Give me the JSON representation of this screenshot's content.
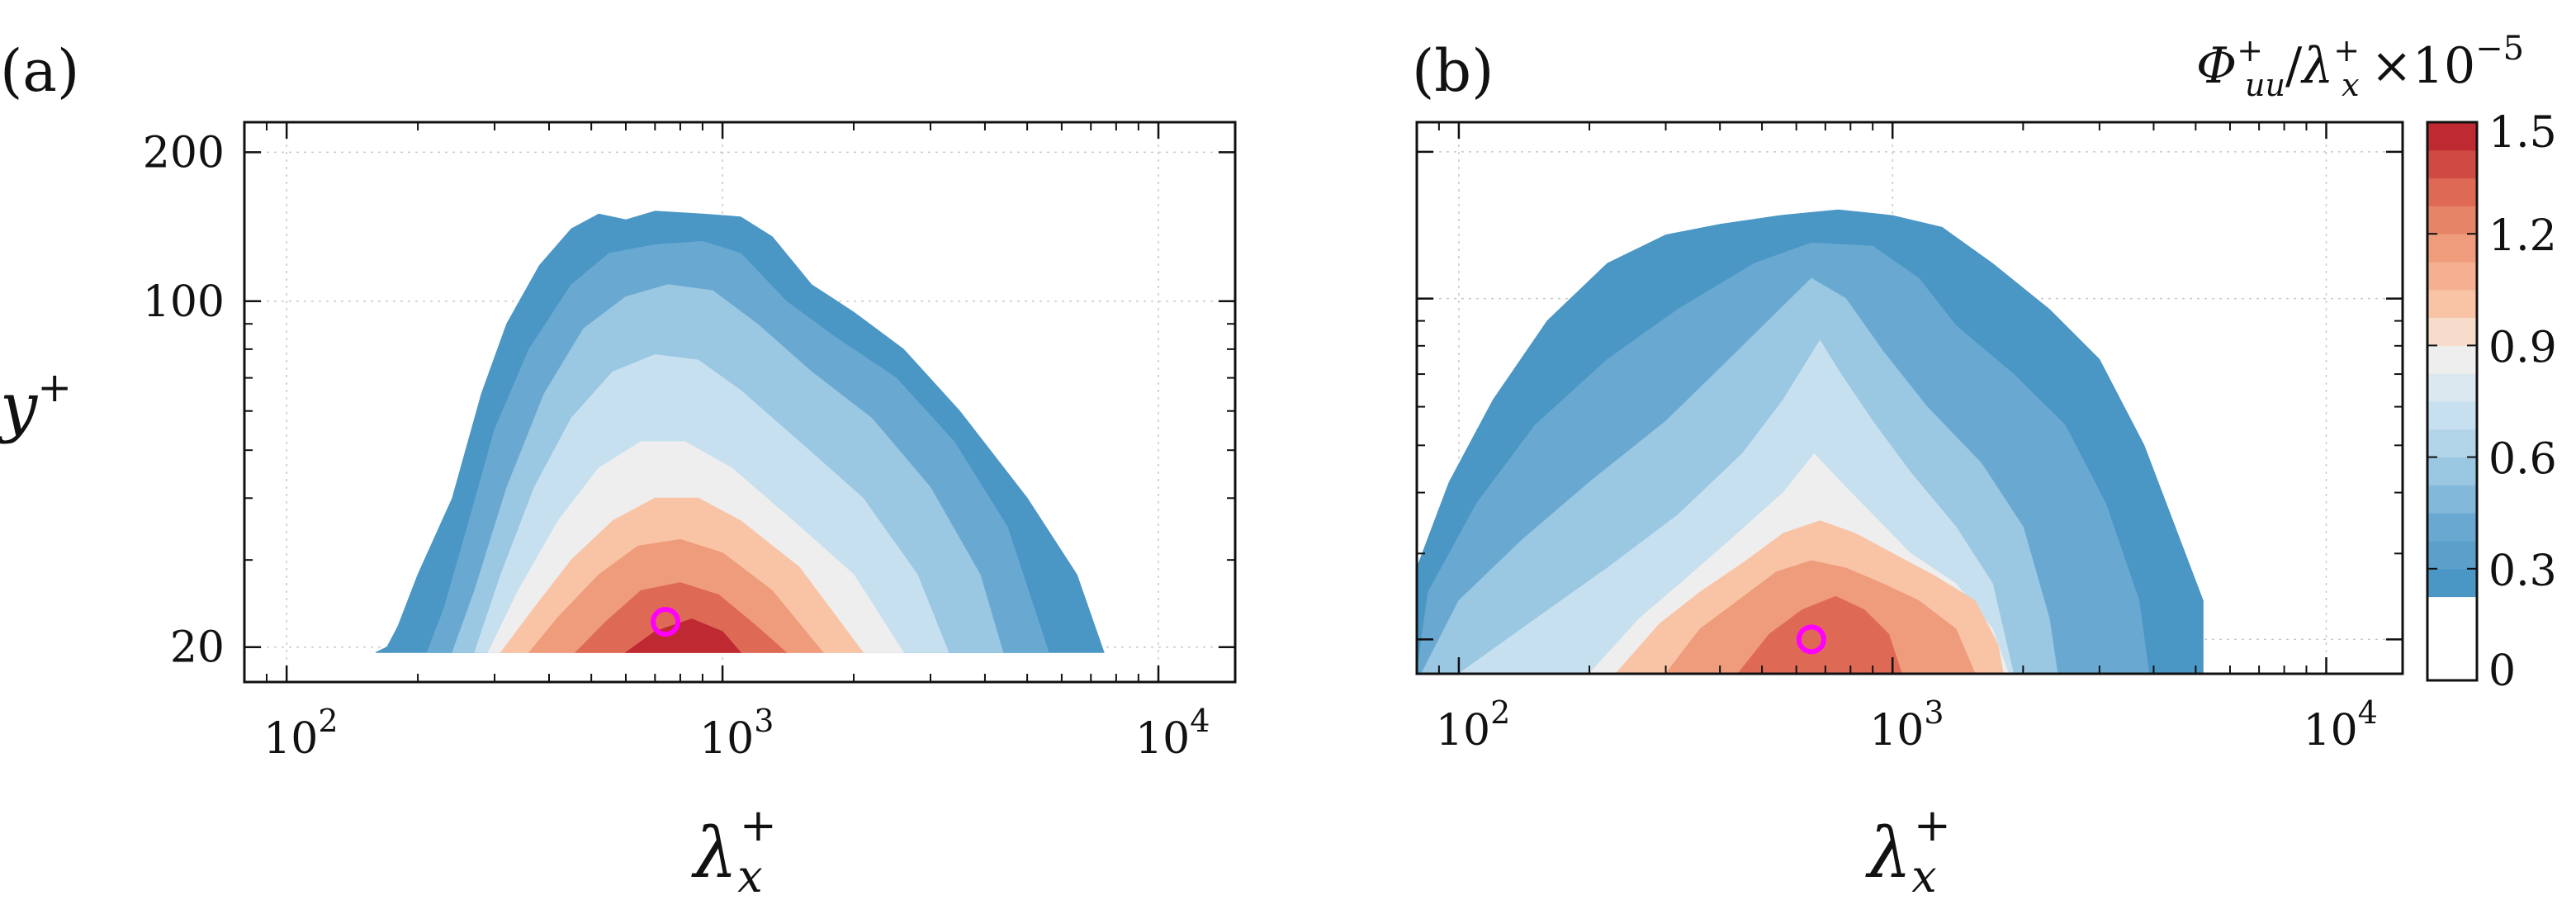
{
  "chart_data": [
    {
      "type": "heatmap",
      "panel_label": "(a)",
      "xlabel": "λx+",
      "ylabel": "y+",
      "x_scale": "log",
      "y_scale": "log",
      "xlim": [
        80,
        15000
      ],
      "ylim": [
        17,
        230
      ],
      "x_ticks": [
        {
          "value": 100,
          "base": "10",
          "exp": "2"
        },
        {
          "value": 1000,
          "base": "10",
          "exp": "3"
        },
        {
          "value": 10000,
          "base": "10",
          "exp": "4"
        }
      ],
      "y_ticks": [
        {
          "value": 20,
          "label": "20"
        },
        {
          "value": 100,
          "label": "100"
        },
        {
          "value": 200,
          "label": "200"
        }
      ],
      "grid": true,
      "contour_levels": [
        {
          "level": 0.225,
          "color": "#4a96c5",
          "boundary": [
            [
              160,
              19.5
            ],
            [
              170,
              20
            ],
            [
              180,
              22
            ],
            [
              200,
              28
            ],
            [
              240,
              40
            ],
            [
              280,
              65
            ],
            [
              320,
              90
            ],
            [
              380,
              118
            ],
            [
              450,
              140
            ],
            [
              520,
              150
            ],
            [
              600,
              146
            ],
            [
              700,
              152
            ],
            [
              900,
              150
            ],
            [
              1100,
              148
            ],
            [
              1300,
              135
            ],
            [
              1600,
              108
            ],
            [
              2000,
              95
            ],
            [
              2600,
              80
            ],
            [
              3500,
              60
            ],
            [
              5000,
              40
            ],
            [
              6500,
              28
            ],
            [
              7500,
              19.5
            ]
          ]
        },
        {
          "level": 0.375,
          "color": "#69a9d1",
          "boundary": [
            [
              210,
              19.5
            ],
            [
              230,
              24
            ],
            [
              260,
              35
            ],
            [
              300,
              55
            ],
            [
              360,
              80
            ],
            [
              450,
              108
            ],
            [
              550,
              125
            ],
            [
              700,
              130
            ],
            [
              900,
              132
            ],
            [
              1100,
              125
            ],
            [
              1400,
              100
            ],
            [
              1800,
              85
            ],
            [
              2500,
              70
            ],
            [
              3400,
              52
            ],
            [
              4500,
              35
            ],
            [
              5600,
              19.5
            ]
          ]
        },
        {
          "level": 0.525,
          "color": "#9ac7e2",
          "boundary": [
            [
              240,
              19.5
            ],
            [
              270,
              26
            ],
            [
              320,
              42
            ],
            [
              390,
              65
            ],
            [
              480,
              88
            ],
            [
              600,
              102
            ],
            [
              750,
              108
            ],
            [
              950,
              105
            ],
            [
              1200,
              90
            ],
            [
              1600,
              72
            ],
            [
              2200,
              58
            ],
            [
              3000,
              42
            ],
            [
              3900,
              28
            ],
            [
              4400,
              19.5
            ]
          ]
        },
        {
          "level": 0.675,
          "color": "#c7e0ef",
          "boundary": [
            [
              270,
              19.5
            ],
            [
              310,
              28
            ],
            [
              370,
              42
            ],
            [
              450,
              58
            ],
            [
              560,
              72
            ],
            [
              700,
              78
            ],
            [
              880,
              76
            ],
            [
              1100,
              66
            ],
            [
              1500,
              52
            ],
            [
              2100,
              40
            ],
            [
              2800,
              28
            ],
            [
              3300,
              19.5
            ]
          ]
        },
        {
          "level": 0.825,
          "color": "#eeeeee",
          "boundary": [
            [
              290,
              19.5
            ],
            [
              340,
              26
            ],
            [
              420,
              36
            ],
            [
              520,
              46
            ],
            [
              650,
              52
            ],
            [
              820,
              52
            ],
            [
              1050,
              46
            ],
            [
              1450,
              36
            ],
            [
              2000,
              28
            ],
            [
              2600,
              19.5
            ]
          ]
        },
        {
          "level": 0.975,
          "color": "#f9c4a6",
          "boundary": [
            [
              310,
              19.5
            ],
            [
              370,
              24
            ],
            [
              450,
              30
            ],
            [
              560,
              36
            ],
            [
              700,
              40
            ],
            [
              880,
              40
            ],
            [
              1100,
              36
            ],
            [
              1500,
              29
            ],
            [
              2100,
              19.5
            ]
          ]
        },
        {
          "level": 1.125,
          "color": "#ef9c7c",
          "boundary": [
            [
              360,
              19.5
            ],
            [
              420,
              23
            ],
            [
              520,
              28
            ],
            [
              640,
              32
            ],
            [
              800,
              33
            ],
            [
              1000,
              31
            ],
            [
              1300,
              26
            ],
            [
              1700,
              19.5
            ]
          ]
        },
        {
          "level": 1.275,
          "color": "#de6a55",
          "boundary": [
            [
              460,
              19.5
            ],
            [
              540,
              22.5
            ],
            [
              650,
              26
            ],
            [
              800,
              27
            ],
            [
              980,
              25.5
            ],
            [
              1200,
              22
            ],
            [
              1400,
              19.5
            ]
          ]
        },
        {
          "level": 1.425,
          "color": "#bf2a32",
          "boundary": [
            [
              600,
              19.5
            ],
            [
              700,
              21.5
            ],
            [
              850,
              22.8
            ],
            [
              1000,
              21.5
            ],
            [
              1100,
              19.5
            ]
          ]
        }
      ],
      "marker": {
        "x": 740,
        "y": 22.5,
        "color": "#ff00ff",
        "shape": "circle"
      }
    },
    {
      "type": "heatmap",
      "panel_label": "(b)",
      "xlabel": "λx+",
      "ylabel": "",
      "x_scale": "log",
      "y_scale": "log",
      "xlim": [
        80,
        15000
      ],
      "ylim": [
        17,
        230
      ],
      "x_ticks": [
        {
          "value": 100,
          "base": "10",
          "exp": "2"
        },
        {
          "value": 1000,
          "base": "10",
          "exp": "3"
        },
        {
          "value": 10000,
          "base": "10",
          "exp": "4"
        }
      ],
      "y_ticks": [
        {
          "value": 20
        },
        {
          "value": 100
        },
        {
          "value": 200
        }
      ],
      "grid": true,
      "contour_levels": [
        {
          "level": 0.225,
          "color": "#4a96c5",
          "boundary": [
            [
              80,
              17
            ],
            [
              80,
              28
            ],
            [
              95,
              42
            ],
            [
              120,
              62
            ],
            [
              160,
              90
            ],
            [
              220,
              118
            ],
            [
              300,
              135
            ],
            [
              400,
              142
            ],
            [
              550,
              148
            ],
            [
              750,
              152
            ],
            [
              1000,
              148
            ],
            [
              1300,
              140
            ],
            [
              1700,
              118
            ],
            [
              2300,
              95
            ],
            [
              3000,
              75
            ],
            [
              3800,
              50
            ],
            [
              4600,
              32
            ],
            [
              5200,
              24
            ],
            [
              5200,
              17
            ]
          ]
        },
        {
          "level": 0.375,
          "color": "#69a9d1",
          "boundary": [
            [
              80,
              17
            ],
            [
              85,
              25
            ],
            [
              110,
              38
            ],
            [
              150,
              55
            ],
            [
              220,
              75
            ],
            [
              320,
              95
            ],
            [
              480,
              118
            ],
            [
              650,
              130
            ],
            [
              900,
              128
            ],
            [
              1150,
              110
            ],
            [
              1400,
              88
            ],
            [
              1900,
              70
            ],
            [
              2500,
              55
            ],
            [
              3100,
              38
            ],
            [
              3700,
              24
            ],
            [
              3900,
              17
            ]
          ]
        },
        {
          "level": 0.525,
          "color": "#9ac7e2",
          "boundary": [
            [
              82,
              17
            ],
            [
              100,
              24
            ],
            [
              140,
              32
            ],
            [
              200,
              42
            ],
            [
              300,
              56
            ],
            [
              420,
              75
            ],
            [
              550,
              95
            ],
            [
              650,
              110
            ],
            [
              780,
              100
            ],
            [
              950,
              78
            ],
            [
              1200,
              60
            ],
            [
              1600,
              46
            ],
            [
              2000,
              34
            ],
            [
              2300,
              22
            ],
            [
              2400,
              17
            ]
          ]
        },
        {
          "level": 0.675,
          "color": "#c7e0ef",
          "boundary": [
            [
              100,
              17
            ],
            [
              150,
              22
            ],
            [
              220,
              28
            ],
            [
              320,
              36
            ],
            [
              450,
              48
            ],
            [
              560,
              62
            ],
            [
              680,
              82
            ],
            [
              760,
              70
            ],
            [
              900,
              56
            ],
            [
              1100,
              44
            ],
            [
              1400,
              34
            ],
            [
              1700,
              26
            ],
            [
              1900,
              17
            ]
          ]
        },
        {
          "level": 0.825,
          "color": "#eeeeee",
          "boundary": [
            [
              200,
              17
            ],
            [
              260,
              22
            ],
            [
              340,
              27
            ],
            [
              440,
              33
            ],
            [
              560,
              40
            ],
            [
              660,
              48
            ],
            [
              760,
              42
            ],
            [
              900,
              36
            ],
            [
              1100,
              30
            ],
            [
              1400,
              26
            ],
            [
              1700,
              21
            ],
            [
              1850,
              17
            ]
          ]
        },
        {
          "level": 0.975,
          "color": "#f9c4a6",
          "boundary": [
            [
              230,
              17
            ],
            [
              290,
              21.5
            ],
            [
              360,
              25
            ],
            [
              460,
              29
            ],
            [
              560,
              33
            ],
            [
              680,
              35
            ],
            [
              820,
              33
            ],
            [
              1000,
              30
            ],
            [
              1250,
              27
            ],
            [
              1550,
              24
            ],
            [
              1750,
              19.5
            ],
            [
              1800,
              17
            ]
          ]
        },
        {
          "level": 1.125,
          "color": "#ef9c7c",
          "boundary": [
            [
              300,
              17
            ],
            [
              360,
              21
            ],
            [
              440,
              24
            ],
            [
              540,
              27.5
            ],
            [
              650,
              29
            ],
            [
              780,
              28
            ],
            [
              950,
              26
            ],
            [
              1150,
              24
            ],
            [
              1400,
              21
            ],
            [
              1550,
              17
            ]
          ]
        },
        {
          "level": 1.275,
          "color": "#de6a55",
          "boundary": [
            [
              440,
              17
            ],
            [
              520,
              20.5
            ],
            [
              620,
              23
            ],
            [
              740,
              24.5
            ],
            [
              860,
              23
            ],
            [
              980,
              20.5
            ],
            [
              1050,
              17
            ]
          ]
        }
      ],
      "marker": {
        "x": 650,
        "y": 20,
        "color": "#ff00ff",
        "shape": "circle"
      }
    }
  ],
  "colorbar": {
    "title": {
      "main": "Φ",
      "main_sup": "+",
      "main_sub": "uu",
      "slash": "/",
      "denom": "λ",
      "denom_sup": "+",
      "denom_sub": "x",
      "factor_base": "×10",
      "factor_exp": "−5"
    },
    "ticks": [
      "1.5",
      "1.2",
      "0.9",
      "0.6",
      "0.3",
      "0"
    ],
    "tick_values": [
      1.5,
      1.2,
      0.9,
      0.6,
      0.3,
      0
    ],
    "range": [
      0,
      1.5
    ],
    "levels": [
      {
        "from": 0.225,
        "to": 0.3,
        "color": "#4a96c5"
      },
      {
        "from": 0.3,
        "to": 0.375,
        "color": "#5aa0cb"
      },
      {
        "from": 0.375,
        "to": 0.45,
        "color": "#69a9d1"
      },
      {
        "from": 0.45,
        "to": 0.525,
        "color": "#82b8da"
      },
      {
        "from": 0.525,
        "to": 0.6,
        "color": "#9ac7e2"
      },
      {
        "from": 0.6,
        "to": 0.675,
        "color": "#b2d4e9"
      },
      {
        "from": 0.675,
        "to": 0.75,
        "color": "#c7e0ef"
      },
      {
        "from": 0.75,
        "to": 0.825,
        "color": "#dbe8f0"
      },
      {
        "from": 0.825,
        "to": 0.9,
        "color": "#eeeeee"
      },
      {
        "from": 0.9,
        "to": 0.975,
        "color": "#f7dccb"
      },
      {
        "from": 0.975,
        "to": 1.05,
        "color": "#f9c4a6"
      },
      {
        "from": 1.05,
        "to": 1.125,
        "color": "#f4b091"
      },
      {
        "from": 1.125,
        "to": 1.2,
        "color": "#ef9c7c"
      },
      {
        "from": 1.2,
        "to": 1.275,
        "color": "#e68468"
      },
      {
        "from": 1.275,
        "to": 1.35,
        "color": "#de6a55"
      },
      {
        "from": 1.35,
        "to": 1.425,
        "color": "#cf4a43"
      },
      {
        "from": 1.425,
        "to": 1.5,
        "color": "#bf2a32"
      }
    ]
  }
}
